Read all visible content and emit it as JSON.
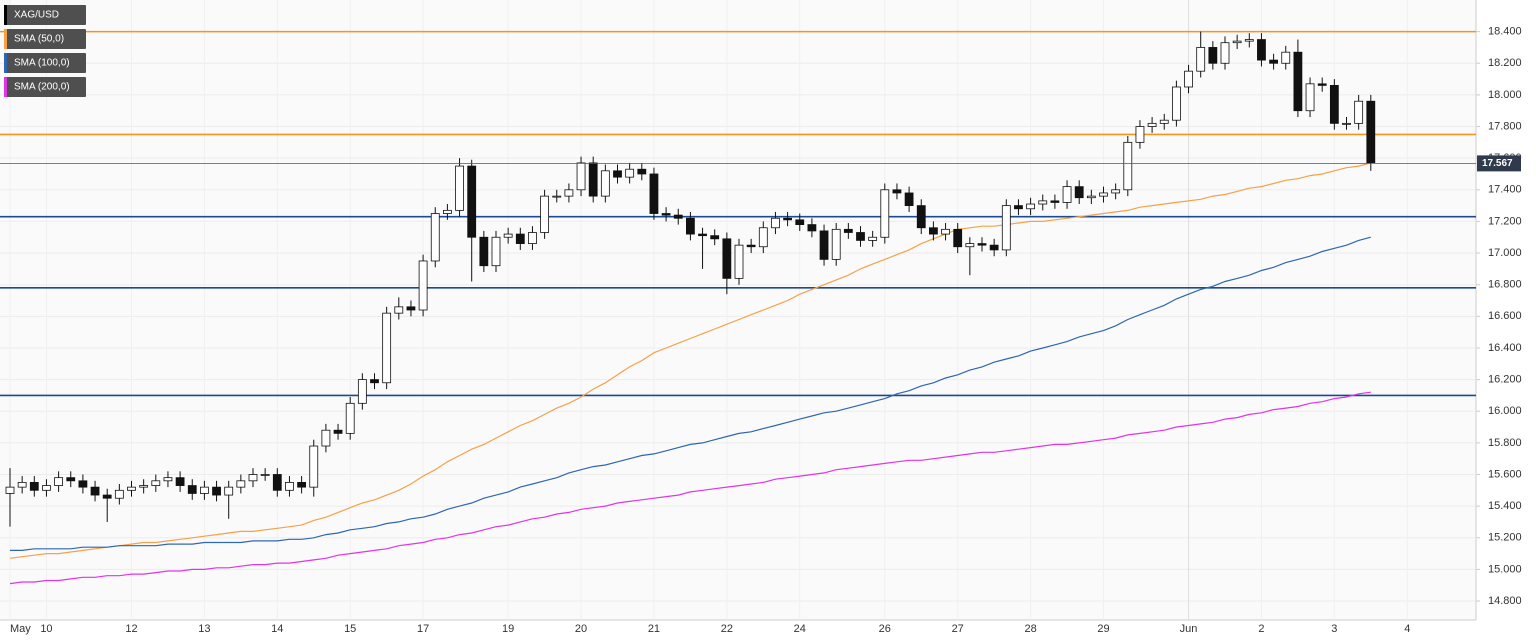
{
  "chart_data": {
    "type": "candlestick",
    "categories": [
      "May",
      null,
      null,
      "10",
      null,
      null,
      null,
      null,
      null,
      null,
      "12",
      null,
      null,
      null,
      null,
      null,
      "13",
      null,
      null,
      null,
      null,
      null,
      "14",
      null,
      null,
      null,
      null,
      null,
      "15",
      null,
      null,
      null,
      null,
      null,
      "17",
      null,
      null,
      null,
      null,
      null,
      null,
      "19",
      null,
      null,
      null,
      null,
      null,
      "20",
      null,
      null,
      null,
      null,
      null,
      "21",
      null,
      null,
      null,
      null,
      null,
      "22",
      null,
      null,
      null,
      null,
      null,
      "24",
      null,
      null,
      null,
      null,
      null,
      null,
      "26",
      null,
      null,
      null,
      null,
      null,
      "27",
      null,
      null,
      null,
      null,
      null,
      "28",
      null,
      null,
      null,
      null,
      null,
      "29",
      null,
      null,
      null,
      null,
      null,
      null,
      "Jun",
      null,
      null,
      null,
      null,
      null,
      "2",
      null,
      null,
      null,
      null,
      null,
      "3",
      null,
      null,
      null,
      null,
      null,
      "4"
    ],
    "series": [
      {
        "name": "XAG/USD",
        "color": "#111111",
        "open": [
          15.48,
          15.52,
          15.55,
          15.5,
          15.53,
          15.58,
          15.56,
          15.52,
          15.47,
          15.45,
          15.5,
          15.52,
          15.53,
          15.56,
          15.58,
          15.53,
          15.48,
          15.52,
          15.47,
          15.52,
          15.56,
          15.6,
          15.6,
          15.5,
          15.55,
          15.52,
          15.78,
          15.88,
          15.86,
          16.05,
          16.2,
          16.18,
          16.62,
          16.66,
          16.64,
          16.95,
          17.25,
          17.27,
          17.55,
          17.1,
          16.92,
          17.1,
          17.12,
          17.06,
          17.13,
          17.36,
          17.36,
          17.4,
          17.57,
          17.36,
          17.52,
          17.48,
          17.53,
          17.5,
          17.25,
          17.24,
          17.22,
          17.12,
          17.11,
          17.09,
          16.84,
          17.05,
          17.04,
          17.16,
          17.22,
          17.21,
          17.18,
          17.14,
          16.96,
          17.15,
          17.13,
          17.08,
          17.1,
          17.4,
          17.38,
          17.3,
          17.16,
          17.12,
          17.15,
          17.04,
          17.06,
          17.05,
          17.02,
          17.3,
          17.28,
          17.31,
          17.33,
          17.32,
          17.42,
          17.35,
          17.36,
          17.38,
          17.4,
          17.7,
          17.8,
          17.82,
          17.84,
          18.05,
          18.15,
          18.3,
          18.2,
          18.33,
          18.34,
          18.35,
          18.22,
          18.2,
          18.27,
          17.9,
          18.07,
          18.06,
          17.82,
          17.82,
          17.96,
          null,
          null,
          null
        ],
        "high": [
          15.64,
          15.59,
          15.59,
          15.57,
          15.62,
          15.62,
          15.6,
          15.56,
          15.51,
          15.54,
          15.56,
          15.57,
          15.6,
          15.62,
          15.62,
          15.57,
          15.56,
          15.56,
          15.56,
          15.6,
          15.64,
          15.64,
          15.64,
          15.59,
          15.59,
          15.82,
          15.92,
          15.92,
          16.09,
          16.24,
          16.24,
          16.66,
          16.72,
          16.7,
          16.99,
          17.29,
          17.31,
          17.6,
          17.59,
          17.14,
          17.14,
          17.16,
          17.16,
          17.17,
          17.4,
          17.4,
          17.44,
          17.61,
          17.61,
          17.56,
          17.56,
          17.57,
          17.57,
          17.54,
          17.29,
          17.28,
          17.26,
          17.16,
          17.15,
          17.13,
          17.09,
          17.09,
          17.2,
          17.26,
          17.26,
          17.25,
          17.22,
          17.18,
          17.19,
          17.19,
          17.17,
          17.14,
          17.44,
          17.44,
          17.42,
          17.34,
          17.2,
          17.19,
          17.19,
          17.1,
          17.1,
          17.09,
          17.34,
          17.34,
          17.35,
          17.37,
          17.37,
          17.46,
          17.46,
          17.4,
          17.42,
          17.44,
          17.74,
          17.84,
          17.86,
          17.88,
          18.09,
          18.19,
          18.4,
          18.34,
          18.37,
          18.38,
          18.39,
          18.39,
          18.26,
          18.31,
          18.35,
          18.11,
          18.11,
          18.1,
          17.86,
          18.0,
          18.0,
          null,
          null,
          null
        ],
        "low": [
          15.27,
          15.48,
          15.46,
          15.46,
          15.49,
          15.52,
          15.48,
          15.43,
          15.3,
          15.41,
          15.46,
          15.48,
          15.49,
          15.52,
          15.49,
          15.44,
          15.44,
          15.43,
          15.32,
          15.48,
          15.52,
          15.56,
          15.46,
          15.46,
          15.48,
          15.46,
          15.74,
          15.82,
          15.82,
          16.01,
          16.14,
          16.14,
          16.58,
          16.6,
          16.6,
          16.91,
          17.21,
          17.23,
          16.82,
          16.88,
          16.88,
          17.06,
          17.02,
          17.02,
          17.09,
          17.32,
          17.32,
          17.36,
          17.32,
          17.32,
          17.44,
          17.44,
          17.46,
          17.21,
          17.2,
          17.18,
          17.08,
          16.9,
          17.05,
          16.74,
          16.8,
          17.0,
          17.0,
          17.12,
          17.17,
          17.14,
          17.1,
          16.92,
          16.92,
          17.09,
          17.04,
          17.04,
          17.06,
          17.34,
          17.26,
          17.12,
          17.08,
          17.08,
          17.0,
          16.86,
          17.01,
          16.98,
          16.98,
          17.24,
          17.24,
          17.27,
          17.28,
          17.28,
          17.31,
          17.31,
          17.32,
          17.34,
          17.36,
          17.66,
          17.76,
          17.78,
          17.8,
          18.01,
          18.11,
          18.16,
          18.16,
          18.29,
          18.3,
          18.18,
          18.16,
          18.16,
          17.86,
          17.86,
          18.02,
          17.78,
          17.78,
          17.78,
          17.52,
          null,
          null,
          null
        ],
        "close": [
          15.52,
          15.55,
          15.5,
          15.53,
          15.58,
          15.56,
          15.52,
          15.47,
          15.45,
          15.5,
          15.52,
          15.53,
          15.56,
          15.58,
          15.53,
          15.48,
          15.52,
          15.47,
          15.52,
          15.56,
          15.6,
          15.6,
          15.5,
          15.55,
          15.52,
          15.78,
          15.88,
          15.86,
          16.05,
          16.2,
          16.18,
          16.62,
          16.66,
          16.64,
          16.95,
          17.25,
          17.27,
          17.55,
          17.1,
          16.92,
          17.1,
          17.12,
          17.06,
          17.13,
          17.36,
          17.36,
          17.4,
          17.57,
          17.36,
          17.52,
          17.48,
          17.53,
          17.5,
          17.25,
          17.24,
          17.22,
          17.12,
          17.11,
          17.09,
          16.84,
          17.05,
          17.04,
          17.16,
          17.22,
          17.21,
          17.18,
          17.14,
          16.96,
          17.15,
          17.13,
          17.08,
          17.1,
          17.4,
          17.38,
          17.3,
          17.16,
          17.12,
          17.15,
          17.04,
          17.06,
          17.05,
          17.02,
          17.3,
          17.28,
          17.31,
          17.33,
          17.32,
          17.42,
          17.35,
          17.36,
          17.38,
          17.4,
          17.7,
          17.8,
          17.82,
          17.84,
          18.05,
          18.15,
          18.3,
          18.2,
          18.33,
          18.34,
          18.35,
          18.22,
          18.2,
          18.27,
          17.9,
          18.07,
          18.06,
          17.82,
          17.82,
          17.96,
          17.57,
          null,
          null,
          null
        ]
      },
      {
        "name": "SMA (50,0)",
        "color": "#f5a14a",
        "type": "line",
        "values": [
          15.07,
          15.08,
          15.09,
          15.1,
          15.1,
          15.11,
          15.12,
          15.13,
          15.14,
          15.15,
          15.16,
          15.17,
          15.17,
          15.18,
          15.19,
          15.2,
          15.21,
          15.22,
          15.23,
          15.24,
          15.24,
          15.25,
          15.26,
          15.27,
          15.28,
          15.31,
          15.33,
          15.36,
          15.39,
          15.42,
          15.44,
          15.47,
          15.5,
          15.54,
          15.59,
          15.63,
          15.68,
          15.72,
          15.76,
          15.79,
          15.83,
          15.87,
          15.91,
          15.94,
          15.98,
          16.02,
          16.05,
          16.09,
          16.14,
          16.18,
          16.23,
          16.28,
          16.32,
          16.37,
          16.4,
          16.43,
          16.46,
          16.49,
          16.52,
          16.55,
          16.58,
          16.61,
          16.64,
          16.67,
          16.7,
          16.74,
          16.77,
          16.8,
          16.83,
          16.86,
          16.9,
          16.93,
          16.96,
          16.99,
          17.02,
          17.06,
          17.09,
          17.12,
          17.15,
          17.16,
          17.17,
          17.17,
          17.18,
          17.19,
          17.2,
          17.2,
          17.21,
          17.22,
          17.23,
          17.24,
          17.25,
          17.26,
          17.27,
          17.29,
          17.3,
          17.31,
          17.32,
          17.33,
          17.34,
          17.36,
          17.37,
          17.39,
          17.41,
          17.42,
          17.44,
          17.46,
          17.47,
          17.49,
          17.5,
          17.52,
          17.54,
          17.55,
          17.57,
          null,
          null,
          null
        ]
      },
      {
        "name": "SMA (100,0)",
        "color": "#2e67b1",
        "type": "line",
        "values": [
          15.12,
          15.12,
          15.13,
          15.13,
          15.13,
          15.13,
          15.14,
          15.14,
          15.14,
          15.15,
          15.15,
          15.15,
          15.15,
          15.16,
          15.16,
          15.16,
          15.17,
          15.17,
          15.17,
          15.17,
          15.18,
          15.18,
          15.18,
          15.19,
          15.19,
          15.2,
          15.22,
          15.23,
          15.25,
          15.26,
          15.27,
          15.29,
          15.3,
          15.32,
          15.33,
          15.35,
          15.38,
          15.4,
          15.42,
          15.45,
          15.47,
          15.49,
          15.52,
          15.54,
          15.56,
          15.58,
          15.61,
          15.63,
          15.65,
          15.66,
          15.68,
          15.7,
          15.72,
          15.73,
          15.75,
          15.77,
          15.79,
          15.8,
          15.82,
          15.84,
          15.86,
          15.87,
          15.89,
          15.91,
          15.93,
          15.95,
          15.97,
          15.99,
          16.0,
          16.02,
          16.04,
          16.06,
          16.08,
          16.11,
          16.13,
          16.16,
          16.18,
          16.21,
          16.23,
          16.26,
          16.28,
          16.31,
          16.33,
          16.35,
          16.38,
          16.4,
          16.42,
          16.44,
          16.47,
          16.49,
          16.51,
          16.54,
          16.58,
          16.61,
          16.64,
          16.67,
          16.71,
          16.74,
          16.77,
          16.79,
          16.82,
          16.84,
          16.86,
          16.89,
          16.91,
          16.94,
          16.96,
          16.98,
          17.01,
          17.03,
          17.05,
          17.08,
          17.1,
          null,
          null,
          null
        ]
      },
      {
        "name": "SMA (200,0)",
        "color": "#e234e6",
        "type": "line",
        "values": [
          14.91,
          14.92,
          14.92,
          14.93,
          14.93,
          14.94,
          14.95,
          14.95,
          14.96,
          14.96,
          14.97,
          14.97,
          14.98,
          14.99,
          14.99,
          15.0,
          15.0,
          15.01,
          15.01,
          15.02,
          15.03,
          15.03,
          15.04,
          15.04,
          15.05,
          15.06,
          15.07,
          15.09,
          15.1,
          15.11,
          15.12,
          15.13,
          15.15,
          15.16,
          15.17,
          15.19,
          15.2,
          15.22,
          15.23,
          15.25,
          15.27,
          15.28,
          15.3,
          15.32,
          15.33,
          15.35,
          15.36,
          15.38,
          15.39,
          15.4,
          15.42,
          15.43,
          15.44,
          15.45,
          15.46,
          15.47,
          15.49,
          15.5,
          15.51,
          15.52,
          15.53,
          15.54,
          15.55,
          15.57,
          15.58,
          15.59,
          15.6,
          15.61,
          15.63,
          15.64,
          15.65,
          15.66,
          15.67,
          15.68,
          15.69,
          15.69,
          15.7,
          15.71,
          15.72,
          15.73,
          15.74,
          15.74,
          15.75,
          15.76,
          15.77,
          15.78,
          15.79,
          15.79,
          15.8,
          15.81,
          15.82,
          15.83,
          15.85,
          15.86,
          15.87,
          15.88,
          15.9,
          15.91,
          15.92,
          15.93,
          15.95,
          15.96,
          15.98,
          15.99,
          16.01,
          16.02,
          16.03,
          16.05,
          16.06,
          16.08,
          16.09,
          16.11,
          16.12,
          null,
          null,
          null
        ]
      }
    ],
    "ylim": [
      14.68,
      18.6
    ],
    "yticks": [
      {
        "value": 14.8,
        "label": "14.800"
      },
      {
        "value": 15.0,
        "label": "15.000"
      },
      {
        "value": 15.2,
        "label": "15.200"
      },
      {
        "value": 15.4,
        "label": "15.400"
      },
      {
        "value": 15.6,
        "label": "15.600"
      },
      {
        "value": 15.8,
        "label": "15.800"
      },
      {
        "value": 16.0,
        "label": "16.000"
      },
      {
        "value": 16.2,
        "label": "16.200"
      },
      {
        "value": 16.4,
        "label": "16.400"
      },
      {
        "value": 16.6,
        "label": "16.600"
      },
      {
        "value": 16.8,
        "label": "16.800"
      },
      {
        "value": 17.0,
        "label": "17.000"
      },
      {
        "value": 17.2,
        "label": "17.200"
      },
      {
        "value": 17.4,
        "label": "17.400"
      },
      {
        "value": 17.6,
        "label": "17.600"
      },
      {
        "value": 17.8,
        "label": "17.800"
      },
      {
        "value": 18.0,
        "label": "18.000"
      },
      {
        "value": 18.2,
        "label": "18.200"
      },
      {
        "value": 18.4,
        "label": "18.400"
      }
    ],
    "levels": [
      {
        "value": 18.4,
        "color": "#f7931e"
      },
      {
        "value": 17.75,
        "color": "#f7931e"
      },
      {
        "value": 17.23,
        "color": "#1a4a94"
      },
      {
        "value": 16.78,
        "color": "#1a4a94"
      },
      {
        "value": 16.1,
        "color": "#1a4a94"
      }
    ],
    "last_price": 17.567,
    "grid": true,
    "legend": "top-left"
  }
}
